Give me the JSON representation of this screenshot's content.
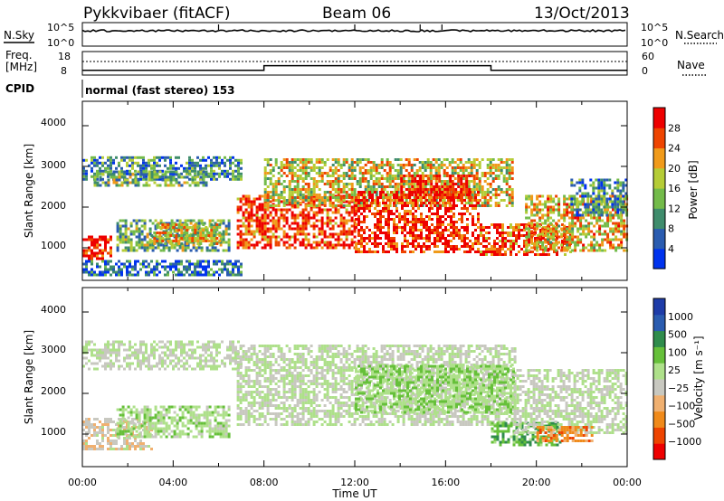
{
  "header": {
    "radar": "Pykkvibaer (fitACF)",
    "beam": "Beam 06",
    "date": "13/Oct/2013"
  },
  "noise_panel": {
    "left_label": "N.Sky",
    "right_label": "N.Search",
    "left_ticks": [
      "10^5",
      "10^0"
    ],
    "right_ticks": [
      "10^5",
      "10^0"
    ]
  },
  "freq_panel": {
    "left_label_line1": "Freq.",
    "left_label_line2": "[MHz]",
    "right_label": "Nave",
    "left_ticks": [
      "18",
      "8"
    ],
    "right_ticks": [
      "60",
      "0"
    ],
    "freq_mhz": [
      {
        "t0": 0.0,
        "t1": 8.0,
        "v": 10.0
      },
      {
        "t0": 8.0,
        "t1": 18.0,
        "v": 12.0
      },
      {
        "t0": 18.0,
        "t1": 24.0,
        "v": 10.0
      }
    ],
    "nave_level": 40
  },
  "cpid": {
    "label": "CPID",
    "text": "normal (fast stereo) 153"
  },
  "power_panel": {
    "ylabel": "Slant Range [km]",
    "yticks": [
      "4000",
      "3000",
      "2000",
      "1000"
    ],
    "colorbar_label": "Power [dB]",
    "colorbar_ticks": [
      "28",
      "24",
      "20",
      "16",
      "12",
      "8",
      "4"
    ]
  },
  "velocity_panel": {
    "ylabel": "Slant Range [km]",
    "yticks": [
      "4000",
      "3000",
      "2000",
      "1000"
    ],
    "colorbar_label": "Velocity [m s⁻¹]",
    "colorbar_ticks": [
      "1000",
      "500",
      "100",
      "25",
      "−25",
      "−100",
      "−500",
      "−1000"
    ]
  },
  "x_axis": {
    "label": "Time UT",
    "ticks": [
      "00:00",
      "04:00",
      "08:00",
      "12:00",
      "16:00",
      "20:00",
      "00:00"
    ]
  },
  "chart_data": [
    {
      "type": "heatmap",
      "title": "",
      "xlabel": "Time UT",
      "ylabel": "Slant Range [km]",
      "xlim": [
        0,
        24
      ],
      "ylim": [
        200,
        4600
      ],
      "colorbar": "Power [dB]",
      "clim": [
        0,
        30
      ],
      "colors": [
        "#0033ee",
        "#2a5cb0",
        "#3f8c6c",
        "#73bb4a",
        "#b5cc36",
        "#f09a1a",
        "#ee4400",
        "#ee0000"
      ],
      "regions": [
        {
          "t0": 0.0,
          "t1": 1.3,
          "r0": 700,
          "r1": 1300,
          "db": 28
        },
        {
          "t0": 0.0,
          "t1": 7.0,
          "r0": 2700,
          "r1": 3250,
          "db": 9
        },
        {
          "t0": 0.5,
          "t1": 5.5,
          "r0": 2500,
          "r1": 2900,
          "db": 12
        },
        {
          "t0": 1.5,
          "t1": 6.5,
          "r0": 900,
          "r1": 1700,
          "db": 12
        },
        {
          "t0": 3.0,
          "t1": 6.0,
          "r0": 1100,
          "r1": 1600,
          "db": 18
        },
        {
          "t0": 0.0,
          "t1": 7.0,
          "r0": 300,
          "r1": 700,
          "db": 6
        },
        {
          "t0": 6.8,
          "t1": 12.0,
          "r0": 1000,
          "r1": 2300,
          "db": 26
        },
        {
          "t0": 8.0,
          "t1": 19.0,
          "r0": 2000,
          "r1": 3200,
          "db": 17
        },
        {
          "t0": 12.0,
          "t1": 17.5,
          "r0": 900,
          "r1": 2400,
          "db": 27
        },
        {
          "t0": 14.0,
          "t1": 17.0,
          "r0": 2200,
          "r1": 2800,
          "db": 27
        },
        {
          "t0": 17.5,
          "t1": 21.5,
          "r0": 800,
          "r1": 1600,
          "db": 25
        },
        {
          "t0": 19.5,
          "t1": 24.0,
          "r0": 900,
          "r1": 2300,
          "db": 19
        },
        {
          "t0": 21.5,
          "t1": 24.0,
          "r0": 1800,
          "r1": 2700,
          "db": 9
        }
      ]
    },
    {
      "type": "heatmap",
      "title": "",
      "xlabel": "Time UT",
      "ylabel": "Slant Range [km]",
      "xlim": [
        0,
        24
      ],
      "ylim": [
        200,
        4600
      ],
      "colorbar": "Velocity [m s⁻¹]",
      "clim": [
        -1000,
        1000
      ],
      "colors": [
        "#ee0000",
        "#ee4400",
        "#f08a1a",
        "#f0b070",
        "#c8c8c0",
        "#aee08a",
        "#66c03a",
        "#2f8c4c",
        "#2a5cb0",
        "#1e3ca8"
      ],
      "regions": [
        {
          "t0": 0.0,
          "t1": 7.0,
          "r0": 2600,
          "r1": 3300,
          "v": 0
        },
        {
          "t0": 0.0,
          "t1": 3.0,
          "r0": 600,
          "r1": 1400,
          "v": -150
        },
        {
          "t0": 1.5,
          "t1": 6.5,
          "r0": 900,
          "r1": 1700,
          "v": 120
        },
        {
          "t0": 6.8,
          "t1": 19.0,
          "r0": 1200,
          "r1": 3200,
          "v": 0
        },
        {
          "t0": 12.0,
          "t1": 19.0,
          "r0": 1500,
          "r1": 2700,
          "v": 150
        },
        {
          "t0": 18.0,
          "t1": 21.0,
          "r0": 700,
          "r1": 1300,
          "v": 350
        },
        {
          "t0": 19.0,
          "t1": 24.0,
          "r0": 1000,
          "r1": 2600,
          "v": 0
        },
        {
          "t0": 20.0,
          "t1": 22.5,
          "r0": 800,
          "r1": 1200,
          "v": -500
        }
      ]
    }
  ]
}
